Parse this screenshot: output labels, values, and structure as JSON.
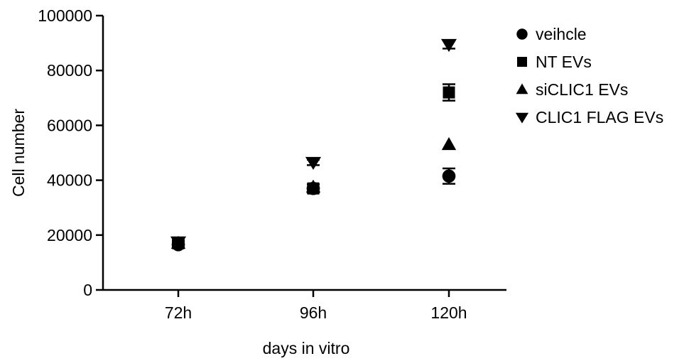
{
  "chart_data": {
    "type": "scatter",
    "title": "",
    "xlabel": "days in vitro",
    "ylabel": "Cell number",
    "categories": [
      "72h",
      "96h",
      "120h"
    ],
    "ylim": [
      0,
      100000
    ],
    "yticks": [
      0,
      20000,
      40000,
      60000,
      80000,
      100000
    ],
    "ytick_labels": [
      "0",
      "20000",
      "40000",
      "60000",
      "80000",
      "100000"
    ],
    "grid": false,
    "legend_position": "right",
    "series": [
      {
        "name": "veihcle",
        "marker": "circle",
        "values": [
          16500,
          37000,
          41500
        ],
        "errors": [
          800,
          1500,
          2800
        ]
      },
      {
        "name": "NT EVs",
        "marker": "square",
        "values": [
          17000,
          37000,
          72000
        ],
        "errors": [
          800,
          1500,
          3000
        ]
      },
      {
        "name": "siCLIC1 EVs",
        "marker": "triangle-up",
        "values": [
          17000,
          37500,
          53000
        ],
        "errors": [
          0,
          0,
          0
        ]
      },
      {
        "name": "CLIC1 FLAG EVs",
        "marker": "triangle-down",
        "values": [
          17500,
          46500,
          89500
        ],
        "errors": [
          600,
          1000,
          1500
        ]
      }
    ]
  }
}
